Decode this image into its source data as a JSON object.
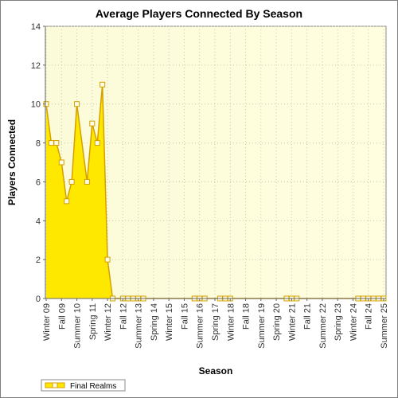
{
  "chart_data": {
    "type": "area",
    "title": "Average Players Connected By Season",
    "xlabel": "Season",
    "ylabel": "Players Connected",
    "ylim": [
      0,
      14
    ],
    "yticks": [
      0,
      2,
      4,
      6,
      8,
      10,
      12,
      14
    ],
    "grid": true,
    "legend_position": "bottom-left",
    "colors": {
      "plot_bg_left": "#fbfbd9",
      "plot_bg_right": "#ffffe0",
      "area_fill": "#ffe800",
      "line": "#d4a000",
      "marker_fill": "#fffde8",
      "grid": "#c8c8b0"
    },
    "categories": [
      "Winter 09",
      "Spring 09",
      "Summer 09",
      "Fall 09",
      "Winter 10",
      "Spring 10",
      "Summer 10",
      "Fall 10",
      "Winter 11",
      "Spring 11",
      "Summer 11",
      "Fall 11",
      "Winter 12",
      "Spring 12",
      "Summer 12",
      "Fall 12",
      "Winter 13",
      "Spring 13",
      "Summer 13",
      "Fall 13",
      "Winter 14",
      "Spring 14",
      "Summer 14",
      "Fall 14",
      "Winter 15",
      "Spring 15",
      "Summer 15",
      "Fall 15",
      "Winter 16",
      "Spring 16",
      "Summer 16",
      "Fall 16",
      "Winter 17",
      "Spring 17",
      "Summer 17",
      "Fall 17",
      "Winter 18",
      "Spring 18",
      "Summer 18",
      "Fall 18",
      "Winter 19",
      "Spring 19",
      "Summer 19",
      "Fall 19",
      "Winter 20",
      "Spring 20",
      "Summer 20",
      "Fall 20",
      "Winter 21",
      "Spring 21",
      "Summer 21",
      "Fall 21",
      "Winter 22",
      "Spring 22",
      "Summer 22",
      "Fall 22",
      "Winter 23",
      "Spring 23",
      "Summer 23",
      "Fall 23",
      "Winter 24",
      "Spring 24",
      "Summer 24",
      "Fall 24",
      "Winter 25",
      "Spring 25",
      "Summer 25"
    ],
    "visible_tick_labels": [
      "Winter 09",
      "Fall 09",
      "Summer 10",
      "Spring 11",
      "Winter 12",
      "Fall 12",
      "Summer 13",
      "Spring 14",
      "Winter 15",
      "Fall 15",
      "Summer 16",
      "Spring 17",
      "Winter 18",
      "Fall 18",
      "Summer 19",
      "Spring 20",
      "Winter 21",
      "Fall 21",
      "Summer 22",
      "Spring 23",
      "Winter 24",
      "Fall 24",
      "Summer 25"
    ],
    "series": [
      {
        "name": "Final Realms",
        "values": [
          10,
          8,
          8,
          7,
          5,
          6,
          10,
          null,
          6,
          9,
          8,
          11,
          2,
          0,
          null,
          0,
          0,
          0,
          0,
          0,
          null,
          null,
          null,
          null,
          null,
          null,
          null,
          null,
          null,
          0,
          0,
          0,
          null,
          null,
          0,
          0,
          0,
          null,
          null,
          null,
          null,
          null,
          null,
          null,
          null,
          null,
          null,
          0,
          0,
          0,
          null,
          null,
          null,
          null,
          null,
          null,
          null,
          null,
          null,
          null,
          null,
          0,
          0,
          0,
          0,
          0,
          0
        ]
      }
    ]
  }
}
